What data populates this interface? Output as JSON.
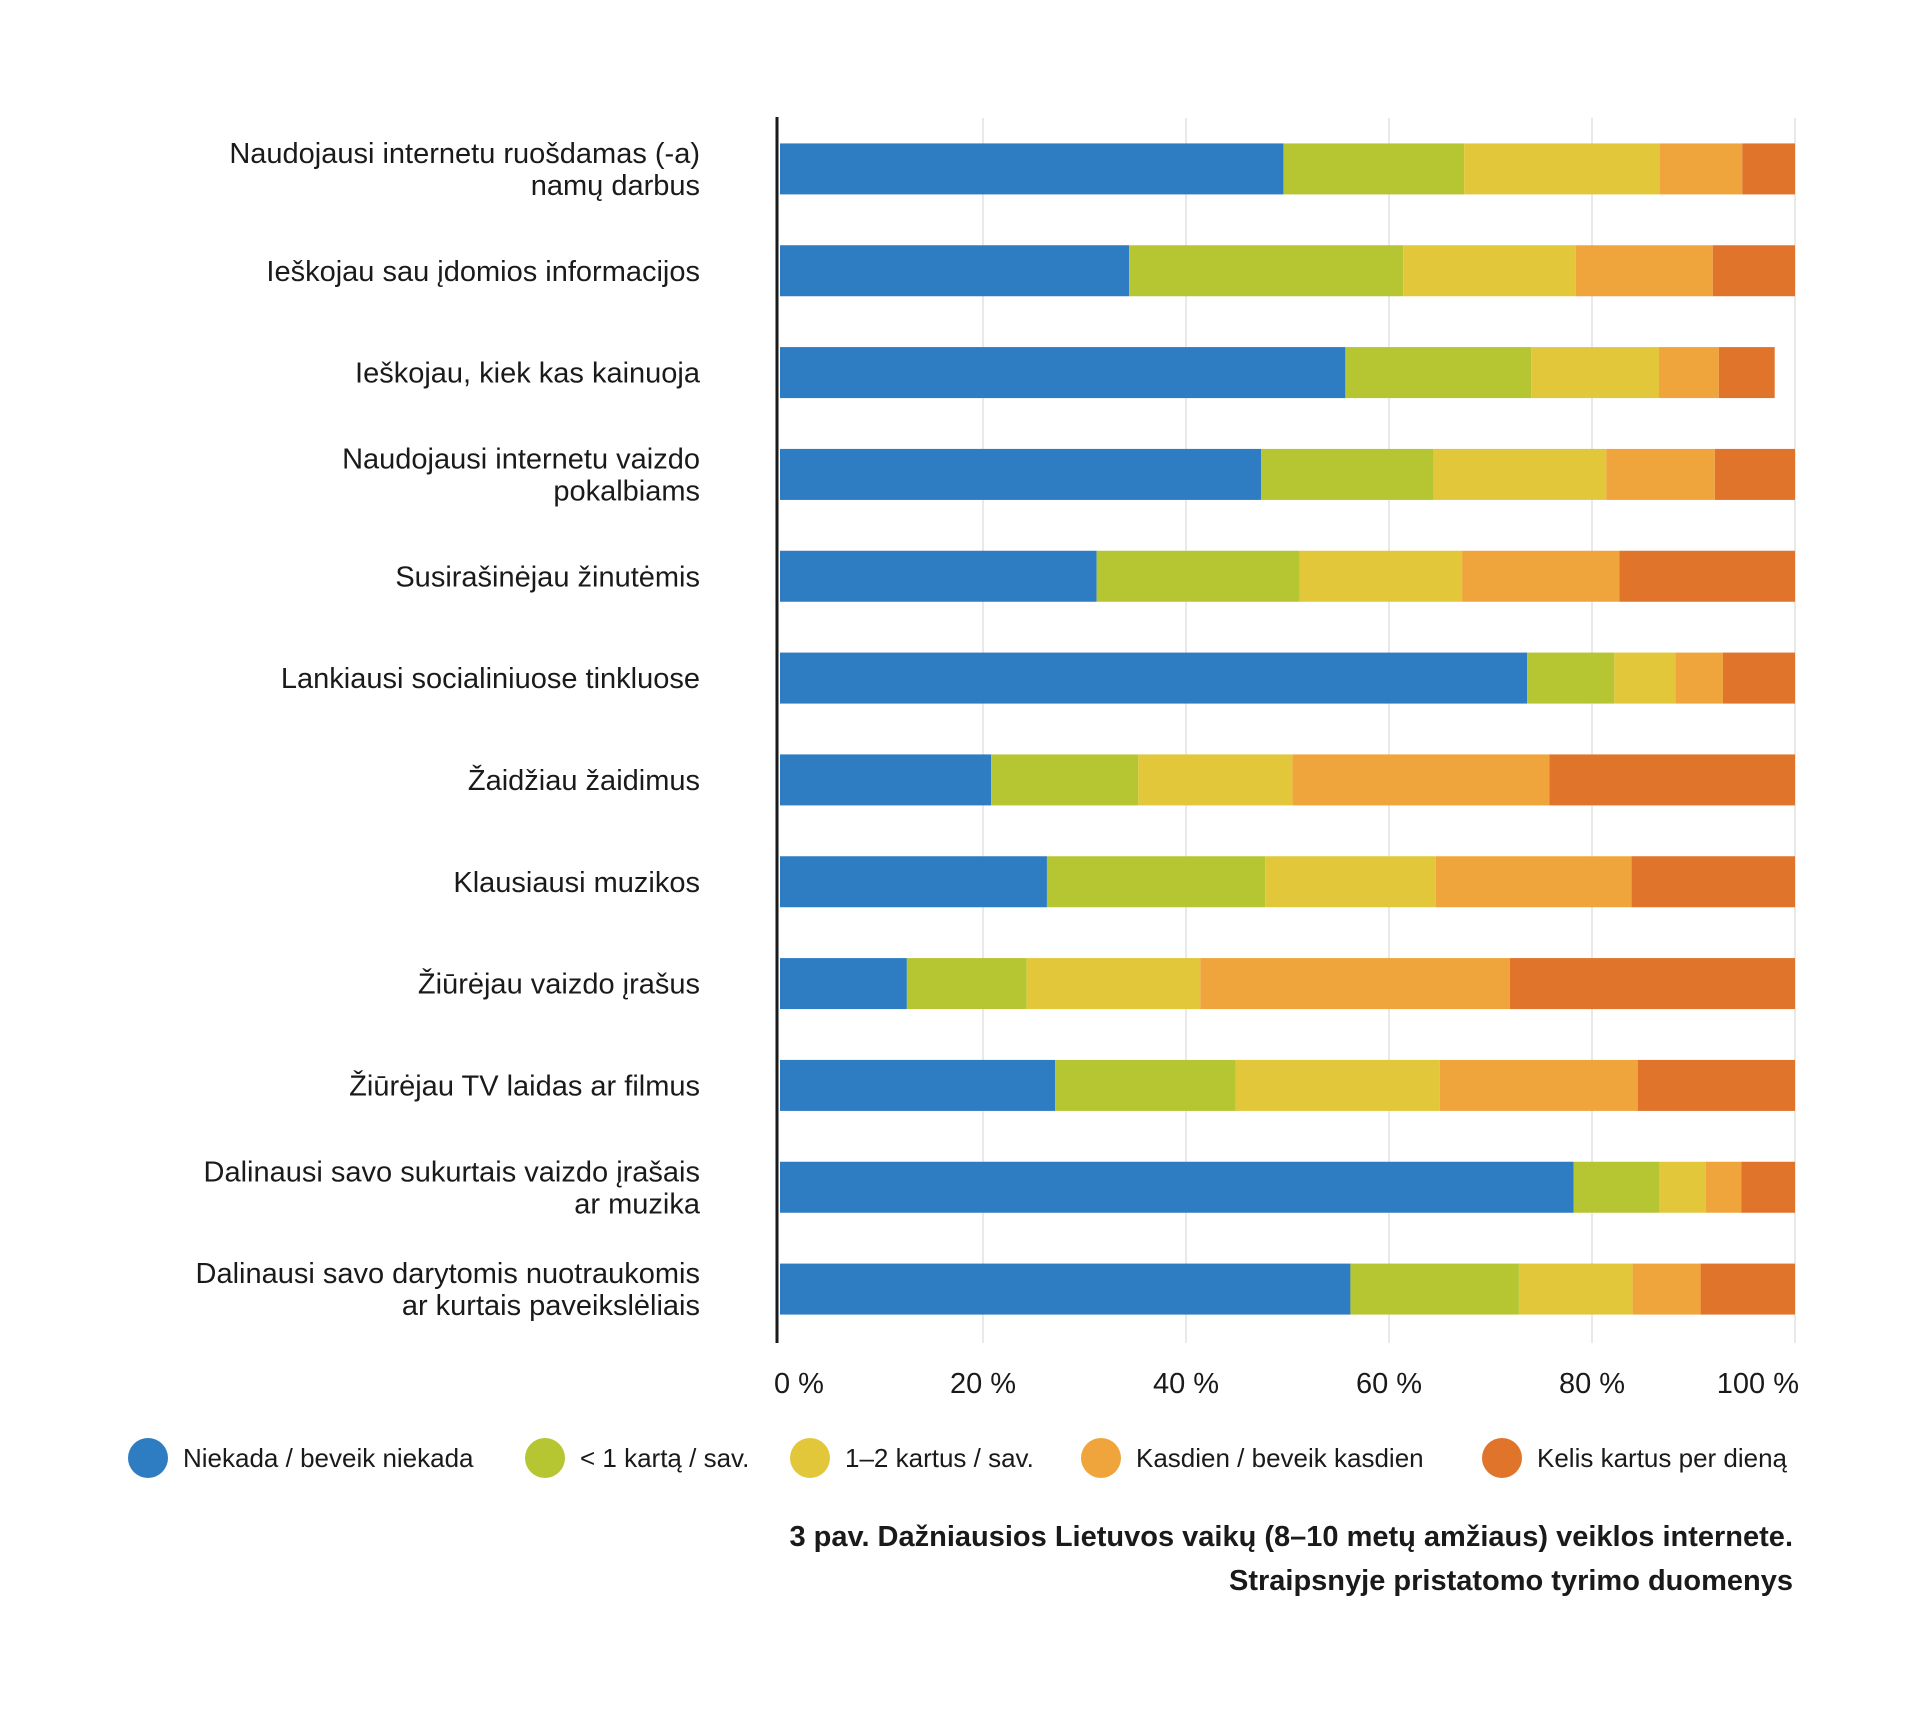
{
  "chart_data": {
    "type": "bar",
    "orientation": "horizontal",
    "stacked": true,
    "title": "",
    "xlabel": "",
    "ylabel": "",
    "xlim": [
      0,
      100
    ],
    "grid": true,
    "legend_position": "bottom",
    "x_ticks": [
      "0 %",
      "20 %",
      "40 %",
      "60 %",
      "80 %",
      "100 %"
    ],
    "categories": [
      [
        "Naudojausi internetu ruošdamas (-a)",
        "namų darbus"
      ],
      [
        "Ieškojau sau įdomios informacijos"
      ],
      [
        "Ieškojau, kiek kas kainuoja"
      ],
      [
        "Naudojausi internetu vaizdo",
        "pokalbiams"
      ],
      [
        "Susirašinėjau žinutėmis"
      ],
      [
        "Lankiausi socialiniuose tinkluose"
      ],
      [
        "Žaidžiau žaidimus"
      ],
      [
        "Klausiausi muzikos"
      ],
      [
        "Žiūrėjau vaizdo įrašus"
      ],
      [
        "Žiūrėjau TV laidas ar filmus"
      ],
      [
        "Dalinausi savo sukurtais vaizdo įrašais",
        "ar muzika"
      ],
      [
        "Dalinausi savo darytomis nuotraukomis",
        "ar kurtais paveikslėliais"
      ]
    ],
    "series": [
      {
        "name": "Niekada / beveik niekada",
        "color": "#2e7cc2",
        "values": [
          49.6,
          34.4,
          55.7,
          47.4,
          31.2,
          73.6,
          20.8,
          26.3,
          12.5,
          27.1,
          78.2,
          56.2
        ]
      },
      {
        "name": "< 1 kartą / sav.",
        "color": "#b6c532",
        "values": [
          17.8,
          27.0,
          18.3,
          17.0,
          20.0,
          8.6,
          14.5,
          21.5,
          11.8,
          17.8,
          8.4,
          16.6
        ]
      },
      {
        "name": "1–2 kartus / sav.",
        "color": "#e2c73a",
        "values": [
          19.3,
          17.0,
          12.6,
          17.0,
          16.0,
          6.0,
          15.2,
          16.8,
          17.1,
          20.1,
          4.6,
          11.2
        ]
      },
      {
        "name": "Kasdien / beveik kasdien",
        "color": "#f0a53c",
        "values": [
          8.1,
          13.5,
          5.9,
          10.7,
          15.5,
          4.7,
          25.3,
          19.3,
          30.5,
          19.5,
          3.5,
          6.7
        ]
      },
      {
        "name": "Kelis kartus per dieną",
        "color": "#e0742b",
        "values": [
          5.2,
          8.1,
          5.5,
          7.9,
          17.3,
          7.1,
          24.2,
          16.1,
          28.1,
          15.5,
          5.3,
          9.3
        ]
      }
    ]
  },
  "caption": {
    "line1": "3 pav. Dažniausios Lietuvos vaikų (8–10 metų amžiaus) veiklos internete.",
    "line2": "Straipsnyje pristatomo tyrimo duomenys"
  }
}
